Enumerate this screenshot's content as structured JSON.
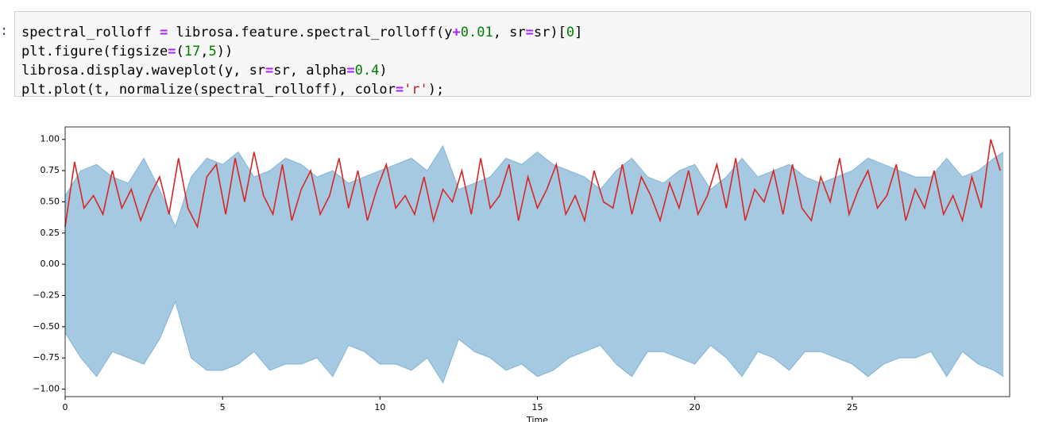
{
  "code": {
    "prompt": ":",
    "lines": [
      "spectral_rolloff = librosa.feature.spectral_rolloff(y+0.01, sr=sr)[0]",
      "plt.figure(figsize=(17,5))",
      "librosa.display.waveplot(y, sr=sr, alpha=0.4)",
      "plt.plot(t, normalize(spectral_rolloff), color='r');"
    ]
  },
  "chart_data": {
    "type": "line",
    "xlabel": "Time",
    "xlim": [
      0,
      30
    ],
    "ylim": [
      -1.06,
      1.1
    ],
    "xticks": [
      0,
      5,
      10,
      15,
      20,
      25
    ],
    "yticks": [
      {
        "value": 1,
        "label": "1.00"
      },
      {
        "value": 0.75,
        "label": "0.75"
      },
      {
        "value": 0.5,
        "label": "0.50"
      },
      {
        "value": 0.25,
        "label": "0.25"
      },
      {
        "value": 0,
        "label": "0.00"
      },
      {
        "value": -0.25,
        "label": "−0.25"
      },
      {
        "value": -0.5,
        "label": "−0.50"
      },
      {
        "value": -0.75,
        "label": "−0.75"
      },
      {
        "value": -1,
        "label": "−1.00"
      }
    ],
    "envelope": {
      "color": "#1f77b4",
      "alpha": 0.4,
      "x": [
        0,
        0.5,
        1,
        1.5,
        2,
        2.5,
        3,
        3.5,
        4,
        4.5,
        5,
        5.5,
        6,
        6.5,
        7,
        7.5,
        8,
        8.5,
        9,
        9.5,
        10,
        10.5,
        11,
        11.5,
        12,
        12.5,
        13,
        13.5,
        14,
        14.5,
        15,
        15.5,
        16,
        16.5,
        17,
        17.5,
        18,
        18.5,
        19,
        19.5,
        20,
        20.5,
        21,
        21.5,
        22,
        22.5,
        23,
        23.5,
        24,
        24.5,
        25,
        25.5,
        26,
        26.5,
        27,
        27.5,
        28,
        28.5,
        29,
        29.5,
        29.8
      ],
      "upper": [
        0.55,
        0.75,
        0.8,
        0.7,
        0.65,
        0.85,
        0.6,
        0.3,
        0.7,
        0.85,
        0.8,
        0.9,
        0.7,
        0.75,
        0.85,
        0.8,
        0.7,
        0.75,
        0.65,
        0.7,
        0.75,
        0.8,
        0.85,
        0.75,
        0.95,
        0.6,
        0.65,
        0.7,
        0.85,
        0.8,
        0.9,
        0.8,
        0.75,
        0.7,
        0.6,
        0.75,
        0.85,
        0.7,
        0.65,
        0.75,
        0.8,
        0.6,
        0.7,
        0.85,
        0.7,
        0.75,
        0.8,
        0.7,
        0.65,
        0.7,
        0.75,
        0.85,
        0.8,
        0.75,
        0.7,
        0.7,
        0.85,
        0.7,
        0.75,
        0.85,
        0.9
      ],
      "lower": [
        -0.55,
        -0.75,
        -0.9,
        -0.7,
        -0.75,
        -0.8,
        -0.6,
        -0.3,
        -0.75,
        -0.85,
        -0.85,
        -0.8,
        -0.7,
        -0.85,
        -0.8,
        -0.8,
        -0.75,
        -0.9,
        -0.65,
        -0.7,
        -0.8,
        -0.8,
        -0.85,
        -0.75,
        -0.95,
        -0.6,
        -0.7,
        -0.75,
        -0.85,
        -0.8,
        -0.9,
        -0.85,
        -0.75,
        -0.7,
        -0.65,
        -0.8,
        -0.9,
        -0.7,
        -0.7,
        -0.75,
        -0.8,
        -0.65,
        -0.75,
        -0.9,
        -0.7,
        -0.75,
        -0.85,
        -0.7,
        -0.7,
        -0.75,
        -0.8,
        -0.9,
        -0.8,
        -0.75,
        -0.75,
        -0.7,
        -0.9,
        -0.7,
        -0.8,
        -0.85,
        -0.9
      ]
    },
    "x": [
      0,
      0.3,
      0.6,
      0.9,
      1.2,
      1.5,
      1.8,
      2.1,
      2.4,
      2.7,
      3,
      3.3,
      3.6,
      3.9,
      4.2,
      4.5,
      4.8,
      5.1,
      5.4,
      5.7,
      6,
      6.3,
      6.6,
      6.9,
      7.2,
      7.5,
      7.8,
      8.1,
      8.4,
      8.7,
      9,
      9.3,
      9.6,
      9.9,
      10.2,
      10.5,
      10.8,
      11.1,
      11.4,
      11.7,
      12,
      12.3,
      12.6,
      12.9,
      13.2,
      13.5,
      13.8,
      14.1,
      14.4,
      14.7,
      15,
      15.3,
      15.6,
      15.9,
      16.2,
      16.5,
      16.8,
      17.1,
      17.4,
      17.7,
      18,
      18.3,
      18.6,
      18.9,
      19.2,
      19.5,
      19.8,
      20.1,
      20.4,
      20.7,
      21,
      21.3,
      21.6,
      21.9,
      22.2,
      22.5,
      22.8,
      23.1,
      23.4,
      23.7,
      24,
      24.3,
      24.6,
      24.9,
      25.2,
      25.5,
      25.8,
      26.1,
      26.4,
      26.7,
      27,
      27.3,
      27.6,
      27.9,
      28.2,
      28.5,
      28.8,
      29.1,
      29.4,
      29.7
    ],
    "series": [
      {
        "color": "#d62728",
        "values": [
          0.3,
          0.82,
          0.45,
          0.55,
          0.4,
          0.75,
          0.45,
          0.6,
          0.35,
          0.55,
          0.7,
          0.4,
          0.85,
          0.45,
          0.3,
          0.7,
          0.8,
          0.4,
          0.85,
          0.5,
          0.9,
          0.55,
          0.4,
          0.8,
          0.35,
          0.6,
          0.75,
          0.4,
          0.55,
          0.85,
          0.45,
          0.75,
          0.35,
          0.6,
          0.8,
          0.45,
          0.55,
          0.4,
          0.7,
          0.35,
          0.6,
          0.5,
          0.75,
          0.4,
          0.85,
          0.45,
          0.55,
          0.8,
          0.35,
          0.7,
          0.45,
          0.6,
          0.8,
          0.4,
          0.55,
          0.35,
          0.75,
          0.5,
          0.45,
          0.8,
          0.4,
          0.7,
          0.55,
          0.35,
          0.65,
          0.45,
          0.75,
          0.4,
          0.55,
          0.8,
          0.45,
          0.85,
          0.35,
          0.6,
          0.5,
          0.75,
          0.4,
          0.8,
          0.45,
          0.35,
          0.7,
          0.5,
          0.85,
          0.4,
          0.6,
          0.75,
          0.45,
          0.55,
          0.8,
          0.35,
          0.6,
          0.45,
          0.75,
          0.4,
          0.55,
          0.35,
          0.7,
          0.45,
          1.0,
          0.75
        ]
      }
    ]
  }
}
